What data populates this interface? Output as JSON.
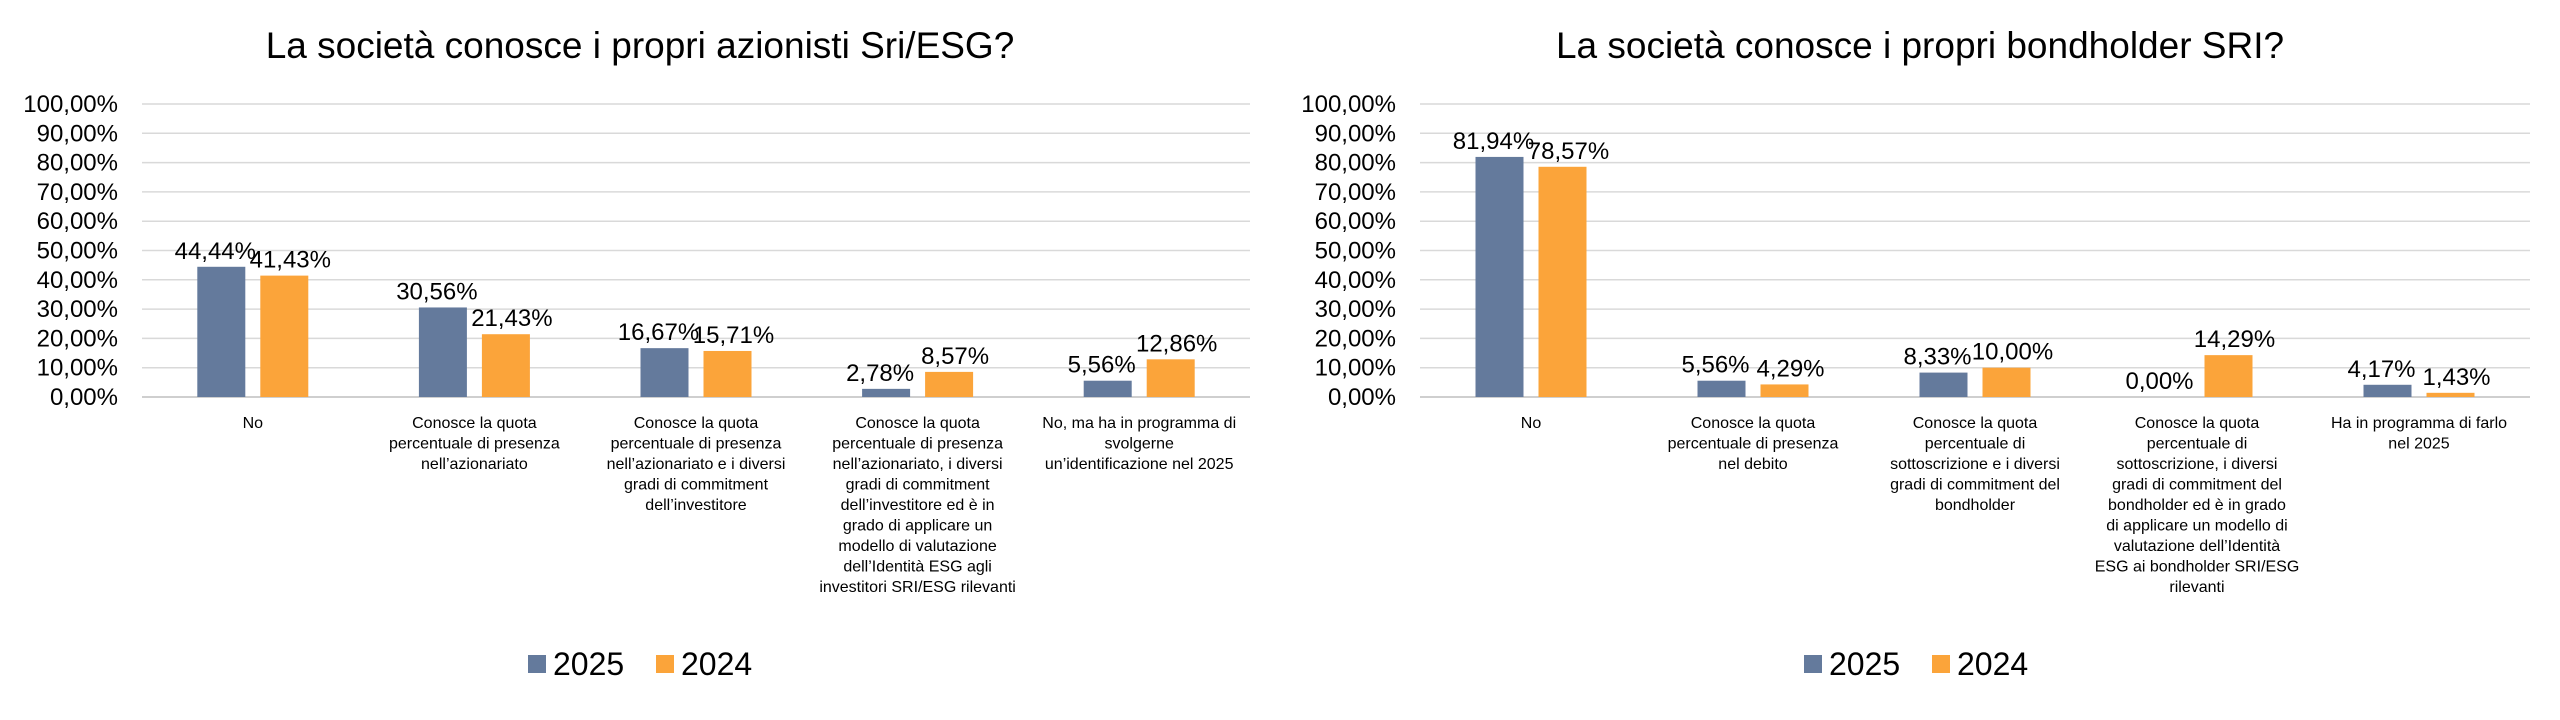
{
  "chart_data": [
    {
      "type": "bar",
      "title": "La società conosce i propri azionisti Sri/ESG?",
      "xlabel": "",
      "ylabel": "",
      "ylim": [
        0,
        100
      ],
      "yticks": [
        "0,00%",
        "10,00%",
        "20,00%",
        "30,00%",
        "40,00%",
        "50,00%",
        "60,00%",
        "70,00%",
        "80,00%",
        "90,00%",
        "100,00%"
      ],
      "grid": true,
      "legend_position": "bottom",
      "categories": [
        [
          "No"
        ],
        [
          "Conosce la quota",
          "percentuale di presenza",
          "nell’azionariato"
        ],
        [
          "Conosce la quota",
          "percentuale di presenza",
          "nell’azionariato e i diversi",
          "gradi di commitment",
          "dell’investitore"
        ],
        [
          "Conosce la quota",
          "percentuale di presenza",
          "nell’azionariato, i diversi",
          "gradi di commitment",
          "dell’investitore ed è in",
          "grado di applicare un",
          "modello di valutazione",
          "dell’Identità ESG agli",
          "investitori SRI/ESG rilevanti"
        ],
        [
          "No, ma ha in programma di",
          "svolgerne",
          "un’identificazione nel 2025"
        ]
      ],
      "series": [
        {
          "name": "2025",
          "color": "#647a9c",
          "values": [
            44.44,
            30.56,
            16.67,
            2.78,
            5.56
          ],
          "labels": [
            "44,44%",
            "30,56%",
            "16,67%",
            "2,78%",
            "5,56%"
          ]
        },
        {
          "name": "2024",
          "color": "#fba43a",
          "values": [
            41.43,
            21.43,
            15.71,
            8.57,
            12.86
          ],
          "labels": [
            "41,43%",
            "21,43%",
            "15,71%",
            "8,57%",
            "12,86%"
          ]
        }
      ]
    },
    {
      "type": "bar",
      "title": "La società conosce i propri bondholder SRI?",
      "xlabel": "",
      "ylabel": "",
      "ylim": [
        0,
        100
      ],
      "yticks": [
        "0,00%",
        "10,00%",
        "20,00%",
        "30,00%",
        "40,00%",
        "50,00%",
        "60,00%",
        "70,00%",
        "80,00%",
        "90,00%",
        "100,00%"
      ],
      "grid": true,
      "legend_position": "bottom",
      "categories": [
        [
          "No"
        ],
        [
          "Conosce la quota",
          "percentuale di presenza",
          "nel debito"
        ],
        [
          "Conosce la quota",
          "percentuale di",
          "sottoscrizione e i diversi",
          "gradi di commitment del",
          "bondholder"
        ],
        [
          "Conosce la quota",
          "percentuale di",
          "sottoscrizione, i diversi",
          "gradi di commitment del",
          "bondholder ed è in grado",
          "di applicare un modello di",
          "valutazione dell’Identità",
          "ESG ai bondholder SRI/ESG",
          "rilevanti"
        ],
        [
          "Ha in programma di farlo",
          "nel 2025"
        ]
      ],
      "series": [
        {
          "name": "2025",
          "color": "#647a9c",
          "values": [
            81.94,
            5.56,
            8.33,
            0.0,
            4.17
          ],
          "labels": [
            "81,94%",
            "5,56%",
            "8,33%",
            "0,00%",
            "4,17%"
          ]
        },
        {
          "name": "2024",
          "color": "#fba43a",
          "values": [
            78.57,
            4.29,
            10.0,
            14.29,
            1.43
          ],
          "labels": [
            "78,57%",
            "4,29%",
            "10,00%",
            "14,29%",
            "1,43%"
          ]
        }
      ]
    }
  ]
}
